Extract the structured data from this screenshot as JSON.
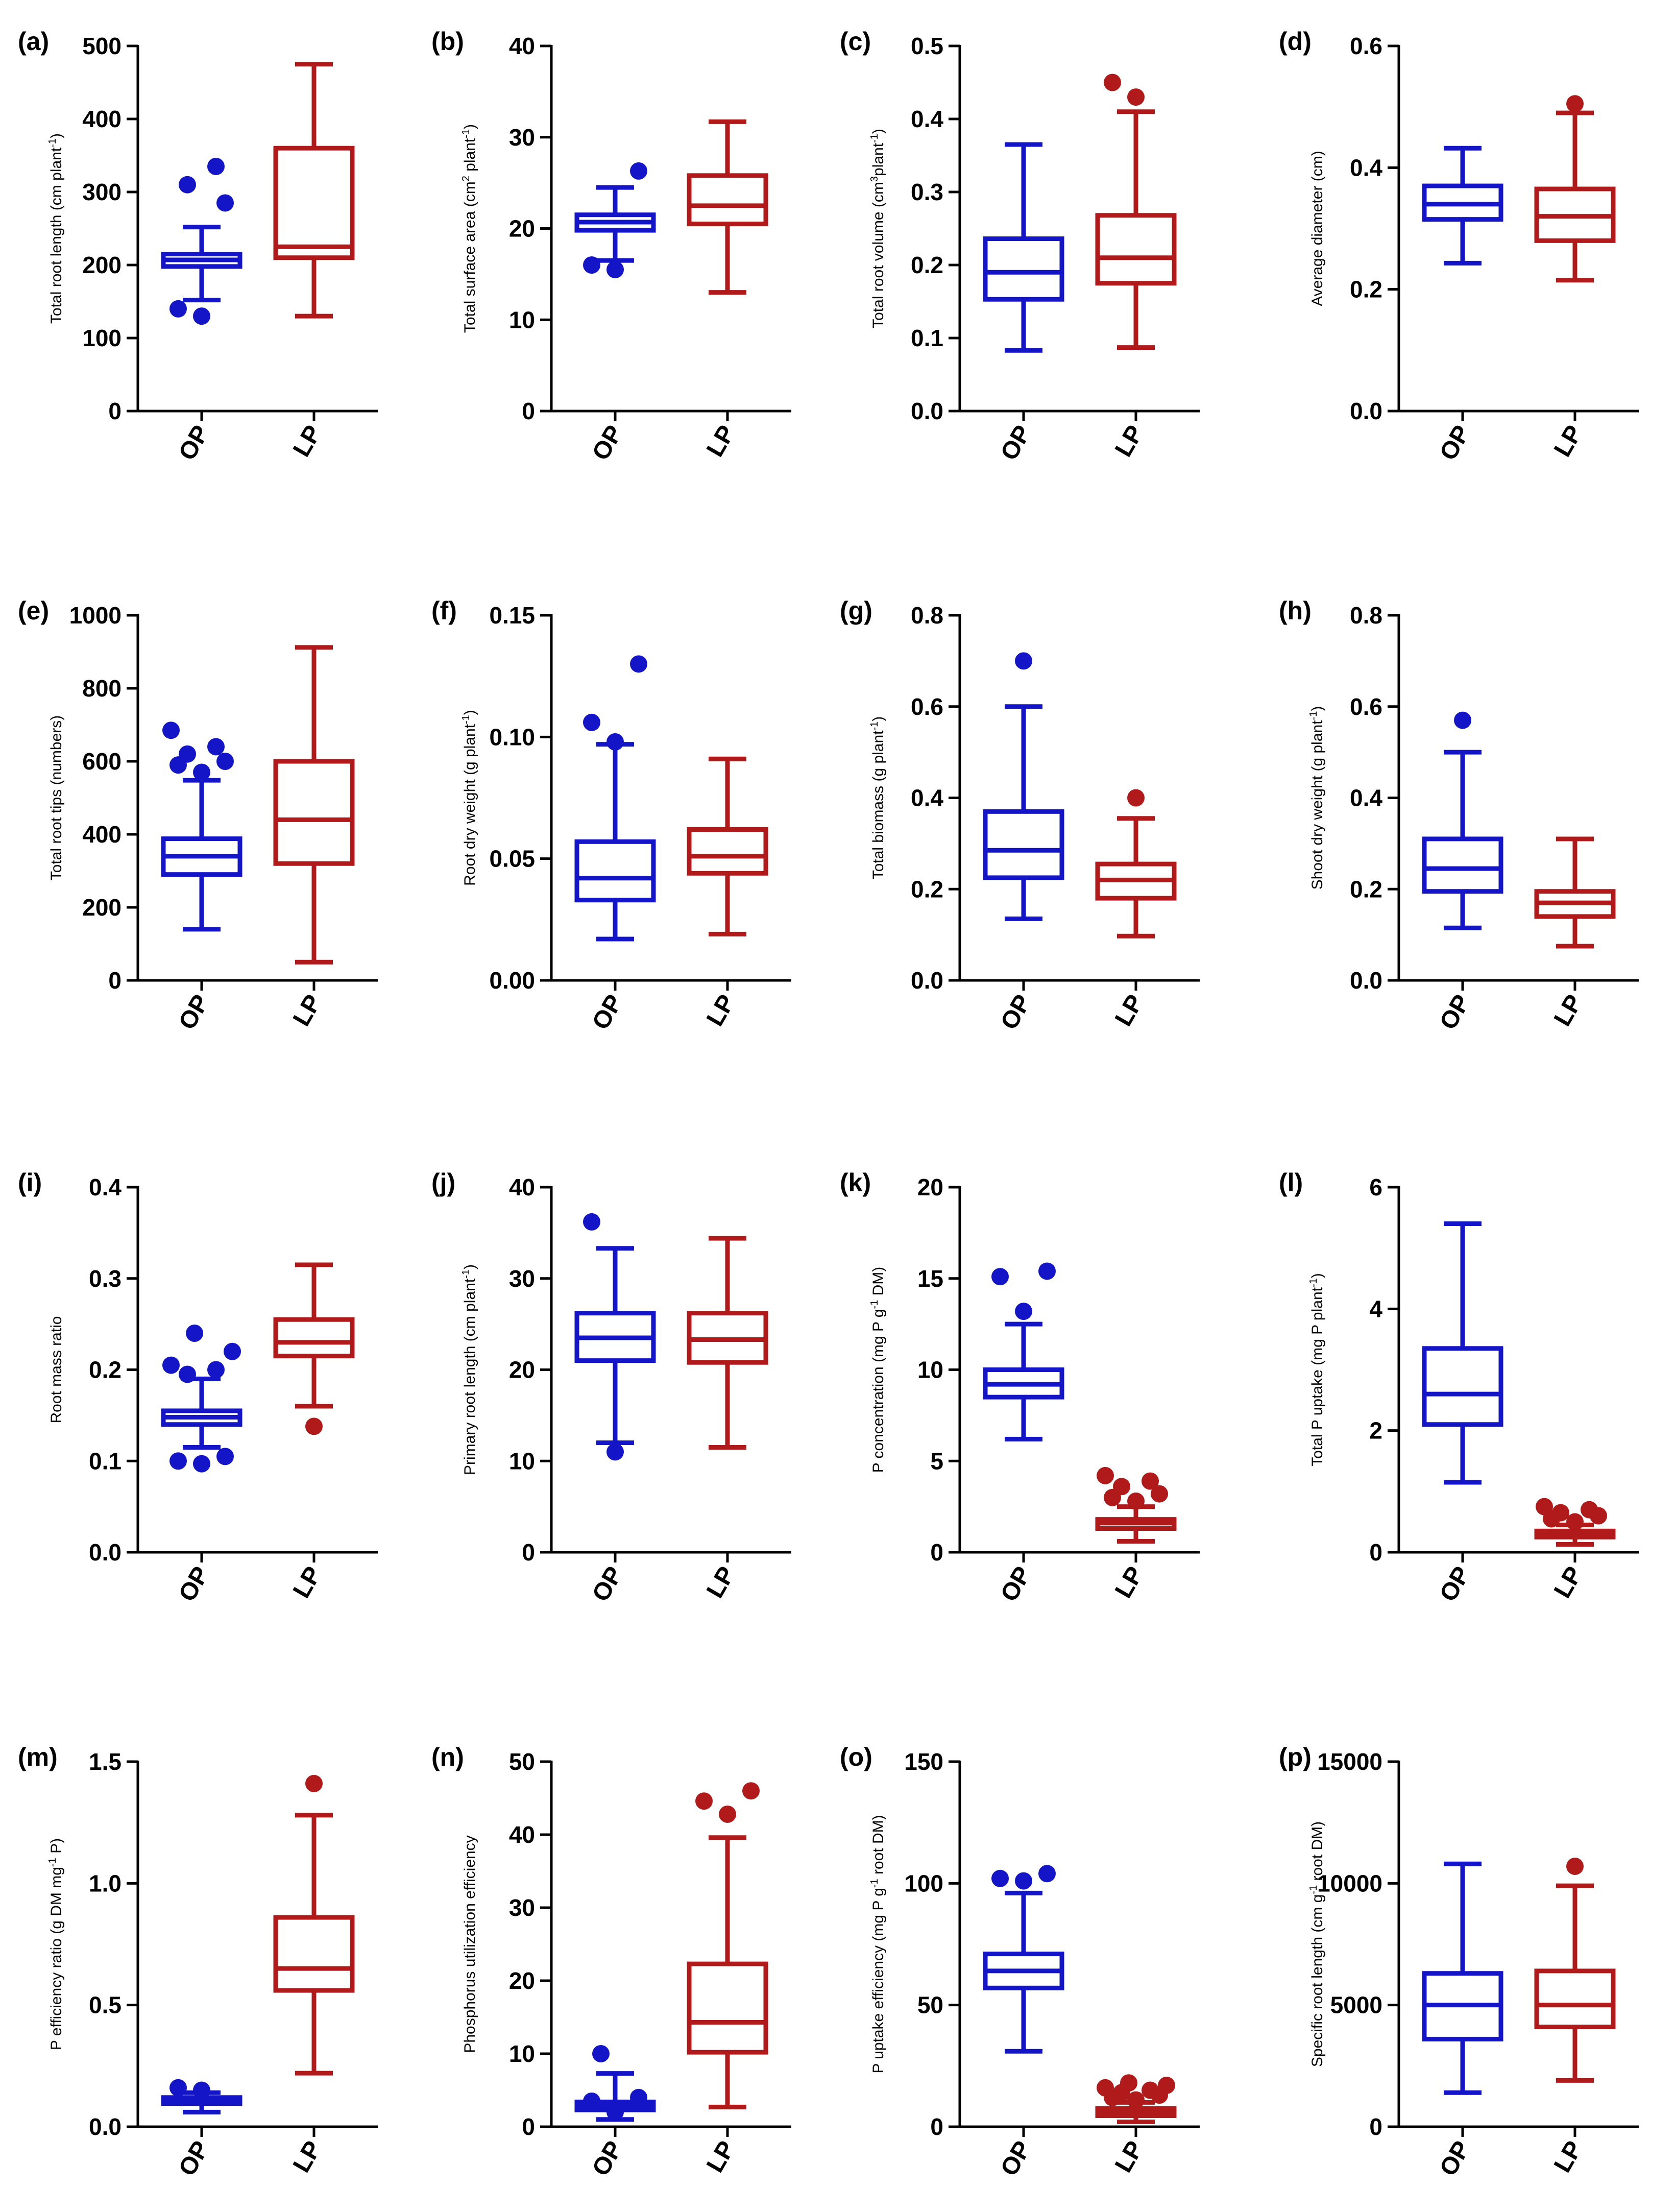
{
  "colors": {
    "OP": "#1515c8",
    "LP": "#b01a1a",
    "axis": "#000000"
  },
  "chart_data": [
    {
      "id": "a",
      "type": "box",
      "letter": "(a)",
      "ylabel": "Total root length (cm plant⁻¹)",
      "ylim": [
        0,
        500
      ],
      "yticks": [
        0,
        100,
        200,
        300,
        400,
        500
      ],
      "yticklabels": [
        "0",
        "100",
        "200",
        "300",
        "400",
        "500"
      ],
      "categories": [
        "OP",
        "LP"
      ],
      "series": [
        {
          "name": "OP",
          "whisker_low": 152,
          "q1": 198,
          "median": 207,
          "q3": 215,
          "whisker_high": 252,
          "outliers": [
            130,
            140,
            285,
            310,
            335
          ]
        },
        {
          "name": "LP",
          "whisker_low": 130,
          "q1": 210,
          "median": 225,
          "q3": 360,
          "whisker_high": 475,
          "outliers": []
        }
      ]
    },
    {
      "id": "b",
      "type": "box",
      "letter": "(b)",
      "ylabel": "Total surface area (cm² plant⁻¹)",
      "ylim": [
        0,
        40
      ],
      "yticks": [
        0,
        10,
        20,
        30,
        40
      ],
      "yticklabels": [
        "0",
        "10",
        "20",
        "30",
        "40"
      ],
      "categories": [
        "OP",
        "LP"
      ],
      "series": [
        {
          "name": "OP",
          "whisker_low": 16.5,
          "q1": 19.8,
          "median": 20.7,
          "q3": 21.5,
          "whisker_high": 24.5,
          "outliers": [
            15.5,
            16,
            26.3
          ]
        },
        {
          "name": "LP",
          "whisker_low": 13,
          "q1": 20.5,
          "median": 22.5,
          "q3": 25.8,
          "whisker_high": 31.7,
          "outliers": []
        }
      ]
    },
    {
      "id": "c",
      "type": "box",
      "letter": "(c)",
      "ylabel": "Total root volume (cm³plant⁻¹)",
      "ylim": [
        0,
        0.5
      ],
      "yticks": [
        0,
        0.1,
        0.2,
        0.3,
        0.4,
        0.5
      ],
      "yticklabels": [
        "0.0",
        "0.1",
        "0.2",
        "0.3",
        "0.4",
        "0.5"
      ],
      "categories": [
        "OP",
        "LP"
      ],
      "series": [
        {
          "name": "OP",
          "whisker_low": 0.083,
          "q1": 0.153,
          "median": 0.19,
          "q3": 0.236,
          "whisker_high": 0.365,
          "outliers": []
        },
        {
          "name": "LP",
          "whisker_low": 0.087,
          "q1": 0.175,
          "median": 0.21,
          "q3": 0.268,
          "whisker_high": 0.41,
          "outliers": [
            0.43,
            0.45
          ]
        }
      ]
    },
    {
      "id": "d",
      "type": "box",
      "letter": "(d)",
      "ylabel": "Average diameter (cm)",
      "ylim": [
        0,
        0.6
      ],
      "yticks": [
        0,
        0.2,
        0.4,
        0.6
      ],
      "yticklabels": [
        "0.0",
        "0.2",
        "0.4",
        "0.6"
      ],
      "categories": [
        "OP",
        "LP"
      ],
      "series": [
        {
          "name": "OP",
          "whisker_low": 0.243,
          "q1": 0.315,
          "median": 0.34,
          "q3": 0.37,
          "whisker_high": 0.432,
          "outliers": []
        },
        {
          "name": "LP",
          "whisker_low": 0.215,
          "q1": 0.28,
          "median": 0.32,
          "q3": 0.365,
          "whisker_high": 0.49,
          "outliers": [
            0.505
          ]
        }
      ]
    },
    {
      "id": "e",
      "type": "box",
      "letter": "(e)",
      "ylabel": "Total root tips (numbers)",
      "ylim": [
        0,
        1000
      ],
      "yticks": [
        0,
        200,
        400,
        600,
        800,
        1000
      ],
      "yticklabels": [
        "0",
        "200",
        "400",
        "600",
        "800",
        "1000"
      ],
      "categories": [
        "OP",
        "LP"
      ],
      "series": [
        {
          "name": "OP",
          "whisker_low": 140,
          "q1": 290,
          "median": 340,
          "q3": 388,
          "whisker_high": 548,
          "outliers": [
            570,
            590,
            600,
            620,
            640,
            685
          ]
        },
        {
          "name": "LP",
          "whisker_low": 50,
          "q1": 320,
          "median": 440,
          "q3": 600,
          "whisker_high": 912,
          "outliers": []
        }
      ]
    },
    {
      "id": "f",
      "type": "box",
      "letter": "(f)",
      "ylabel": "Root dry weight (g plant⁻¹)",
      "ylim": [
        0,
        0.15
      ],
      "yticks": [
        0,
        0.05,
        0.1,
        0.15
      ],
      "yticklabels": [
        "0.00",
        "0.05",
        "0.10",
        "0.15"
      ],
      "categories": [
        "OP",
        "LP"
      ],
      "series": [
        {
          "name": "OP",
          "whisker_low": 0.017,
          "q1": 0.033,
          "median": 0.042,
          "q3": 0.057,
          "whisker_high": 0.097,
          "outliers": [
            0.098,
            0.106,
            0.13
          ]
        },
        {
          "name": "LP",
          "whisker_low": 0.019,
          "q1": 0.044,
          "median": 0.051,
          "q3": 0.062,
          "whisker_high": 0.091,
          "outliers": []
        }
      ]
    },
    {
      "id": "g",
      "type": "box",
      "letter": "(g)",
      "ylabel": "Total biomass (g plant⁻¹)",
      "ylim": [
        0,
        0.8
      ],
      "yticks": [
        0,
        0.2,
        0.4,
        0.6,
        0.8
      ],
      "yticklabels": [
        "0.0",
        "0.2",
        "0.4",
        "0.6",
        "0.8"
      ],
      "categories": [
        "OP",
        "LP"
      ],
      "series": [
        {
          "name": "OP",
          "whisker_low": 0.135,
          "q1": 0.225,
          "median": 0.285,
          "q3": 0.37,
          "whisker_high": 0.6,
          "outliers": [
            0.7
          ]
        },
        {
          "name": "LP",
          "whisker_low": 0.097,
          "q1": 0.18,
          "median": 0.22,
          "q3": 0.255,
          "whisker_high": 0.355,
          "outliers": [
            0.4
          ]
        }
      ]
    },
    {
      "id": "h",
      "type": "box",
      "letter": "(h)",
      "ylabel": "Shoot dry weight (g plant⁻¹)",
      "ylim": [
        0,
        0.8
      ],
      "yticks": [
        0,
        0.2,
        0.4,
        0.6,
        0.8
      ],
      "yticklabels": [
        "0.0",
        "0.2",
        "0.4",
        "0.6",
        "0.8"
      ],
      "categories": [
        "OP",
        "LP"
      ],
      "series": [
        {
          "name": "OP",
          "whisker_low": 0.115,
          "q1": 0.195,
          "median": 0.245,
          "q3": 0.31,
          "whisker_high": 0.5,
          "outliers": [
            0.57
          ]
        },
        {
          "name": "LP",
          "whisker_low": 0.075,
          "q1": 0.14,
          "median": 0.17,
          "q3": 0.195,
          "whisker_high": 0.31,
          "outliers": []
        }
      ]
    },
    {
      "id": "i",
      "type": "box",
      "letter": "(i)",
      "ylabel": "Root mass ratio",
      "ylim": [
        0,
        0.4
      ],
      "yticks": [
        0,
        0.1,
        0.2,
        0.3,
        0.4
      ],
      "yticklabels": [
        "0.0",
        "0.1",
        "0.2",
        "0.3",
        "0.4"
      ],
      "categories": [
        "OP",
        "LP"
      ],
      "series": [
        {
          "name": "OP",
          "whisker_low": 0.115,
          "q1": 0.14,
          "median": 0.148,
          "q3": 0.155,
          "whisker_high": 0.19,
          "outliers": [
            0.097,
            0.1,
            0.105,
            0.195,
            0.2,
            0.205,
            0.22,
            0.24
          ]
        },
        {
          "name": "LP",
          "whisker_low": 0.16,
          "q1": 0.215,
          "median": 0.23,
          "q3": 0.255,
          "whisker_high": 0.315,
          "outliers": [
            0.138
          ]
        }
      ]
    },
    {
      "id": "j",
      "type": "box",
      "letter": "(j)",
      "ylabel": "Primary root length (cm plant⁻¹)",
      "ylim": [
        0,
        40
      ],
      "yticks": [
        0,
        10,
        20,
        30,
        40
      ],
      "yticklabels": [
        "0",
        "10",
        "20",
        "30",
        "40"
      ],
      "categories": [
        "OP",
        "LP"
      ],
      "series": [
        {
          "name": "OP",
          "whisker_low": 12,
          "q1": 21,
          "median": 23.5,
          "q3": 26.2,
          "whisker_high": 33.3,
          "outliers": [
            11,
            36.2
          ]
        },
        {
          "name": "LP",
          "whisker_low": 11.5,
          "q1": 20.8,
          "median": 23.3,
          "q3": 26.2,
          "whisker_high": 34.4,
          "outliers": []
        }
      ]
    },
    {
      "id": "k",
      "type": "box",
      "letter": "(k)",
      "ylabel": "P concentration (mg P g⁻¹ DM)",
      "ylim": [
        0,
        20
      ],
      "yticks": [
        0,
        5,
        10,
        15,
        20
      ],
      "yticklabels": [
        "0",
        "5",
        "10",
        "15",
        "20"
      ],
      "categories": [
        "OP",
        "LP"
      ],
      "series": [
        {
          "name": "OP",
          "whisker_low": 6.2,
          "q1": 8.5,
          "median": 9.2,
          "q3": 10,
          "whisker_high": 12.5,
          "outliers": [
            13.2,
            15.1,
            15.4
          ]
        },
        {
          "name": "LP",
          "whisker_low": 0.6,
          "q1": 1.3,
          "median": 1.6,
          "q3": 1.8,
          "whisker_high": 2.5,
          "outliers": [
            2.8,
            3.0,
            3.2,
            3.6,
            3.9,
            4.2
          ]
        }
      ]
    },
    {
      "id": "l",
      "type": "box",
      "letter": "(l)",
      "ylabel": "Total P uptake (mg P plant⁻¹)",
      "ylim": [
        0,
        6
      ],
      "yticks": [
        0,
        2,
        4,
        6
      ],
      "yticklabels": [
        "0",
        "2",
        "4",
        "6"
      ],
      "categories": [
        "OP",
        "LP"
      ],
      "series": [
        {
          "name": "OP",
          "whisker_low": 1.15,
          "q1": 2.1,
          "median": 2.6,
          "q3": 3.35,
          "whisker_high": 5.4,
          "outliers": []
        },
        {
          "name": "LP",
          "whisker_low": 0.13,
          "q1": 0.25,
          "median": 0.3,
          "q3": 0.35,
          "whisker_high": 0.45,
          "outliers": [
            0.5,
            0.55,
            0.6,
            0.65,
            0.7,
            0.75
          ]
        }
      ]
    },
    {
      "id": "m",
      "type": "box",
      "letter": "(m)",
      "ylabel": "P efficiency ratio (g DM mg⁻¹ P)",
      "ylim": [
        0,
        1.5
      ],
      "yticks": [
        0,
        0.5,
        1.0,
        1.5
      ],
      "yticklabels": [
        "0.0",
        "0.5",
        "1.0",
        "1.5"
      ],
      "categories": [
        "OP",
        "LP"
      ],
      "series": [
        {
          "name": "OP",
          "whisker_low": 0.06,
          "q1": 0.095,
          "median": 0.11,
          "q3": 0.12,
          "whisker_high": 0.14,
          "outliers": [
            0.15,
            0.16
          ]
        },
        {
          "name": "LP",
          "whisker_low": 0.22,
          "q1": 0.56,
          "median": 0.65,
          "q3": 0.86,
          "whisker_high": 1.28,
          "outliers": [
            1.41
          ]
        }
      ]
    },
    {
      "id": "n",
      "type": "box",
      "letter": "(n)",
      "ylabel": "Phosphorus utilization efficiency",
      "ylim": [
        0,
        50
      ],
      "yticks": [
        0,
        10,
        20,
        30,
        40,
        50
      ],
      "yticklabels": [
        "0",
        "10",
        "20",
        "30",
        "40",
        "50"
      ],
      "categories": [
        "OP",
        "LP"
      ],
      "series": [
        {
          "name": "OP",
          "whisker_low": 1.0,
          "q1": 2.3,
          "median": 2.8,
          "q3": 3.4,
          "whisker_high": 7.3,
          "outliers": [
            2.0,
            3.5,
            4.0,
            10
          ]
        },
        {
          "name": "LP",
          "whisker_low": 2.7,
          "q1": 10.2,
          "median": 14.3,
          "q3": 22.3,
          "whisker_high": 39.6,
          "outliers": [
            42.8,
            44.6,
            46
          ]
        }
      ]
    },
    {
      "id": "o",
      "type": "box",
      "letter": "(o)",
      "ylabel": "P uptake efficiency (mg P g⁻¹ root DM)",
      "ylim": [
        0,
        150
      ],
      "yticks": [
        0,
        50,
        100,
        150
      ],
      "yticklabels": [
        "0",
        "50",
        "100",
        "150"
      ],
      "categories": [
        "OP",
        "LP"
      ],
      "series": [
        {
          "name": "OP",
          "whisker_low": 31,
          "q1": 57,
          "median": 64,
          "q3": 71,
          "whisker_high": 96,
          "outliers": [
            101,
            102,
            104
          ]
        },
        {
          "name": "LP",
          "whisker_low": 2,
          "q1": 4.5,
          "median": 6,
          "q3": 7.5,
          "whisker_high": 10,
          "outliers": [
            11,
            12,
            13,
            14,
            15,
            16,
            17,
            18
          ]
        }
      ]
    },
    {
      "id": "p",
      "type": "box",
      "letter": "(p)",
      "ylabel": "Specific root length (cm g⁻¹ root DM)",
      "ylim": [
        0,
        15000
      ],
      "yticks": [
        0,
        5000,
        10000,
        15000
      ],
      "yticklabels": [
        "0",
        "5000",
        "10000",
        "15000"
      ],
      "categories": [
        "OP",
        "LP"
      ],
      "series": [
        {
          "name": "OP",
          "whisker_low": 1400,
          "q1": 3600,
          "median": 5000,
          "q3": 6300,
          "whisker_high": 10800,
          "outliers": []
        },
        {
          "name": "LP",
          "whisker_low": 1900,
          "q1": 4100,
          "median": 5000,
          "q3": 6400,
          "whisker_high": 9900,
          "outliers": [
            10700
          ]
        }
      ]
    }
  ]
}
